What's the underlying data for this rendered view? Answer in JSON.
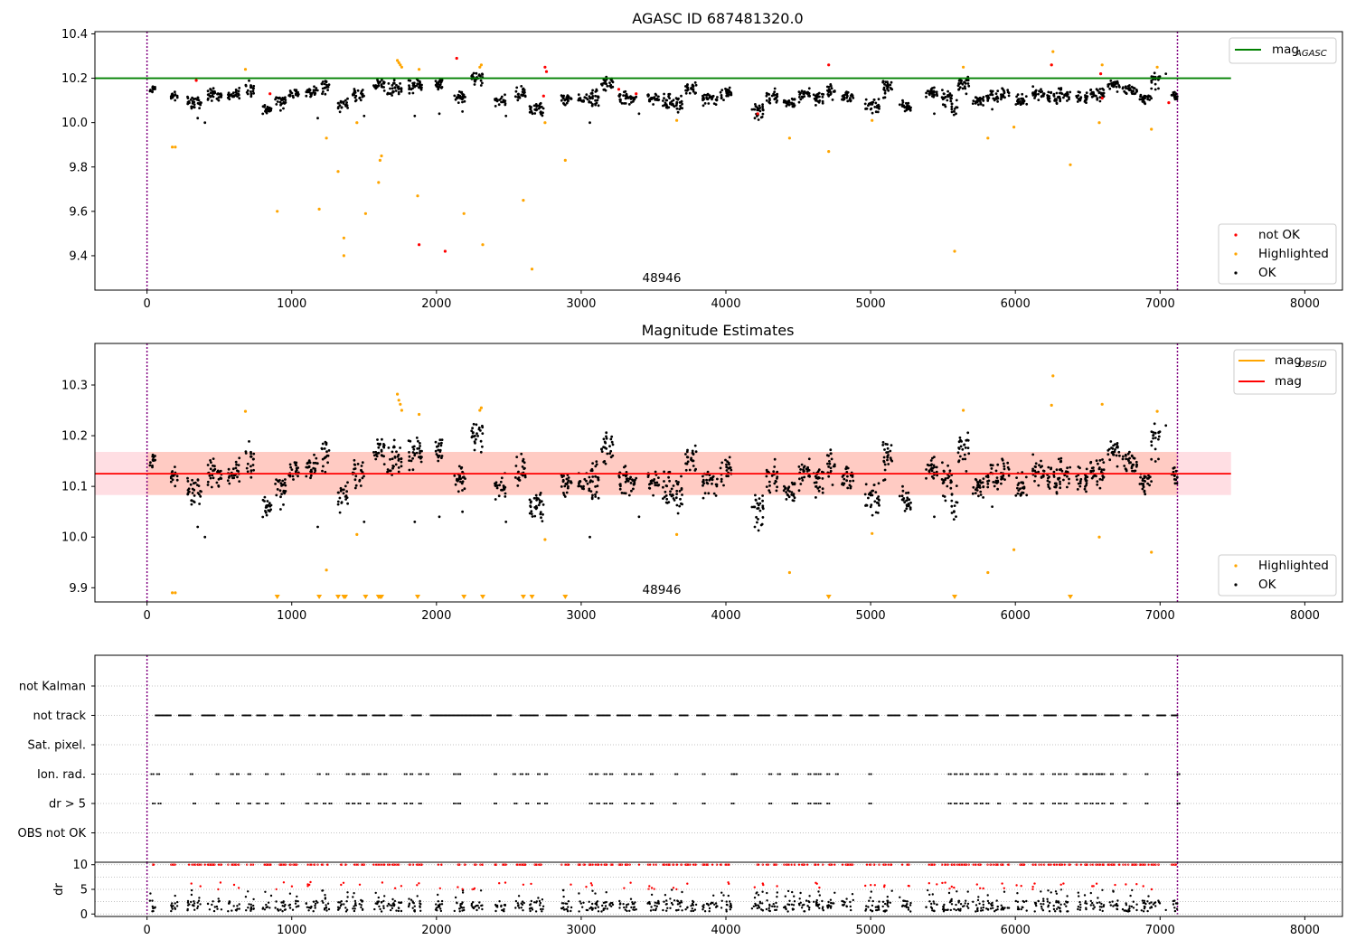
{
  "colors": {
    "ok": "#000000",
    "not_ok": "#ff0000",
    "highlighted": "#ffa500",
    "mag_agasc_line": "#008000",
    "mag_line": "#ff0000",
    "mag_obsid_line": "#ffa500",
    "band": "#ffb6c1",
    "interval_markers": "#800080"
  },
  "chart_data": [
    {
      "type": "scatter",
      "title": "AGASC ID 687481320.0",
      "xlim": [
        -360,
        8260
      ],
      "ylim": [
        9.245,
        10.41
      ],
      "xticks": [
        0,
        1000,
        2000,
        3000,
        4000,
        5000,
        6000,
        7000,
        8000
      ],
      "yticks": [
        9.4,
        9.6,
        9.8,
        10.0,
        10.2,
        10.4
      ],
      "ytick_labels": [
        "9.4",
        "9.6",
        "9.8",
        "10.0",
        "10.2",
        "10.4"
      ],
      "hline": {
        "label": "mag",
        "subscript": "AGASC",
        "value": 10.2,
        "xrange": [
          -360,
          7490
        ]
      },
      "vlines": [
        0,
        7120
      ],
      "annotation": {
        "text": "48946",
        "x": 3560,
        "y": 9.3
      },
      "legends": [
        {
          "placement": "upper right",
          "entries": [
            {
              "label": "mag",
              "subscript": "AGASC",
              "kind": "line",
              "color": "#008000"
            }
          ]
        },
        {
          "placement": "lower right",
          "entries": [
            {
              "label": "not OK",
              "kind": "marker",
              "color": "#ff0000"
            },
            {
              "label": "Highlighted",
              "kind": "marker",
              "color": "#ffa500"
            },
            {
              "label": "OK",
              "kind": "marker",
              "color": "#000000"
            }
          ]
        }
      ],
      "grid": false,
      "series": [
        {
          "name": "Highlighted",
          "color": "#ffa500",
          "points": [
            [
              175,
              9.89
            ],
            [
              195,
              9.89
            ],
            [
              900,
              9.6
            ],
            [
              1190,
              9.61
            ],
            [
              1240,
              9.93
            ],
            [
              1320,
              9.78
            ],
            [
              1360,
              9.48
            ],
            [
              1360,
              9.4
            ],
            [
              1450,
              10.0
            ],
            [
              1510,
              9.59
            ],
            [
              1600,
              9.73
            ],
            [
              1610,
              9.83
            ],
            [
              1620,
              9.85
            ],
            [
              1870,
              9.67
            ],
            [
              2190,
              9.59
            ],
            [
              2320,
              9.45
            ],
            [
              2600,
              9.65
            ],
            [
              2660,
              9.34
            ],
            [
              2750,
              10.0
            ],
            [
              2890,
              9.83
            ],
            [
              3660,
              10.01
            ],
            [
              4440,
              9.93
            ],
            [
              4710,
              9.87
            ],
            [
              5010,
              10.01
            ],
            [
              5580,
              9.42
            ],
            [
              5810,
              9.93
            ],
            [
              5990,
              9.98
            ],
            [
              6380,
              9.81
            ],
            [
              6250,
              10.26
            ],
            [
              6260,
              10.32
            ],
            [
              6580,
              10.0
            ],
            [
              6940,
              9.97
            ],
            [
              680,
              10.24
            ],
            [
              1730,
              10.28
            ],
            [
              1740,
              10.27
            ],
            [
              1750,
              10.26
            ],
            [
              1760,
              10.25
            ],
            [
              1880,
              10.24
            ],
            [
              2300,
              10.25
            ],
            [
              2310,
              10.26
            ],
            [
              5640,
              10.25
            ],
            [
              6600,
              10.26
            ],
            [
              6980,
              10.25
            ]
          ]
        },
        {
          "name": "not OK",
          "color": "#ff0000",
          "points": [
            [
              340,
              10.19
            ],
            [
              850,
              10.13
            ],
            [
              1880,
              9.45
            ],
            [
              2060,
              9.42
            ],
            [
              2140,
              10.29
            ],
            [
              2750,
              10.25
            ],
            [
              2760,
              10.23
            ],
            [
              2740,
              10.12
            ],
            [
              3260,
              10.15
            ],
            [
              3380,
              10.13
            ],
            [
              4710,
              10.26
            ],
            [
              4220,
              10.04
            ],
            [
              6250,
              10.26
            ],
            [
              6590,
              10.22
            ],
            [
              6600,
              10.11
            ],
            [
              7060,
              10.09
            ]
          ]
        }
      ]
    },
    {
      "type": "scatter",
      "title": "Magnitude Estimates",
      "xlim": [
        -360,
        8260
      ],
      "ylim": [
        9.872,
        10.382
      ],
      "xticks": [
        0,
        1000,
        2000,
        3000,
        4000,
        5000,
        6000,
        7000,
        8000
      ],
      "yticks": [
        9.9,
        10.0,
        10.1,
        10.2,
        10.3
      ],
      "ytick_labels": [
        "9.9",
        "10.0",
        "10.1",
        "10.2",
        "10.3"
      ],
      "hline": {
        "label": "mag",
        "value": 10.125,
        "xrange": [
          -360,
          7490
        ]
      },
      "band": {
        "low": 10.083,
        "high": 10.168,
        "xrange": [
          -360,
          7490
        ]
      },
      "vlines": [
        0,
        7120
      ],
      "annotation": {
        "text": "48946",
        "x": 3560,
        "y": 9.89
      },
      "legends": [
        {
          "placement": "upper right",
          "entries": [
            {
              "label": "mag",
              "subscript": "OBSID",
              "kind": "line",
              "color": "#ffa500"
            },
            {
              "label": "mag",
              "kind": "line",
              "color": "#ff0000"
            }
          ]
        },
        {
          "placement": "lower right",
          "entries": [
            {
              "label": "Highlighted",
              "kind": "marker",
              "color": "#ffa500"
            },
            {
              "label": "OK",
              "kind": "marker",
              "color": "#000000"
            }
          ]
        }
      ],
      "grid": false,
      "series": [
        {
          "name": "Highlighted",
          "color": "#ffa500",
          "points": [
            [
              175,
              9.89
            ],
            [
              195,
              9.89
            ],
            [
              1240,
              9.935
            ],
            [
              1450,
              10.005
            ],
            [
              2750,
              9.995
            ],
            [
              3660,
              10.005
            ],
            [
              4440,
              9.93
            ],
            [
              5010,
              10.007
            ],
            [
              5810,
              9.93
            ],
            [
              5990,
              9.975
            ],
            [
              6580,
              10.0
            ],
            [
              6940,
              9.97
            ],
            [
              680,
              10.248
            ],
            [
              1730,
              10.282
            ],
            [
              1740,
              10.27
            ],
            [
              1750,
              10.262
            ],
            [
              1760,
              10.25
            ],
            [
              1880,
              10.242
            ],
            [
              2300,
              10.25
            ],
            [
              2310,
              10.255
            ],
            [
              5640,
              10.25
            ],
            [
              6250,
              10.26
            ],
            [
              6260,
              10.318
            ],
            [
              6600,
              10.262
            ],
            [
              6980,
              10.248
            ]
          ]
        },
        {
          "name": "Highlighted (off scale)",
          "color": "#ffa500",
          "markers": "triangle-down",
          "x": [
            900,
            1190,
            1320,
            1360,
            1370,
            1510,
            1600,
            1610,
            1620,
            1870,
            2190,
            2320,
            2600,
            2660,
            2890,
            4710,
            5580,
            6380
          ]
        }
      ]
    },
    {
      "type": "scatter",
      "categories": [
        "not Kalman",
        "not track",
        "Sat. pixel.",
        "Ion. rad.",
        "dr > 5",
        "OBS not OK"
      ],
      "xlim": [
        -360,
        8260
      ],
      "vlines": [
        0,
        7120
      ],
      "grid": true,
      "series": [
        {
          "name": "not track",
          "ranges": [
            [
              60,
              170
            ],
            [
              220,
              300
            ],
            [
              380,
              470
            ],
            [
              540,
              600
            ],
            [
              660,
              720
            ],
            [
              760,
              820
            ],
            [
              880,
              940
            ],
            [
              990,
              1060
            ],
            [
              1120,
              1160
            ],
            [
              1200,
              1280
            ],
            [
              1320,
              1420
            ],
            [
              1460,
              1520
            ],
            [
              1560,
              1640
            ],
            [
              1680,
              1760
            ],
            [
              1830,
              1900
            ],
            [
              1960,
              2380
            ],
            [
              2420,
              2520
            ],
            [
              2580,
              2700
            ],
            [
              2760,
              2900
            ],
            [
              2960,
              3050
            ],
            [
              3110,
              3200
            ],
            [
              3250,
              3340
            ],
            [
              3400,
              3480
            ],
            [
              3540,
              3620
            ],
            [
              3680,
              3740
            ],
            [
              3800,
              3880
            ],
            [
              3940,
              4000
            ],
            [
              4060,
              4160
            ],
            [
              4220,
              4300
            ],
            [
              4360,
              4420
            ],
            [
              4480,
              4560
            ],
            [
              4620,
              4700
            ],
            [
              4740,
              4800
            ],
            [
              4860,
              4940
            ],
            [
              4990,
              5060
            ],
            [
              5120,
              5200
            ],
            [
              5260,
              5320
            ],
            [
              5380,
              5460
            ],
            [
              5520,
              5600
            ],
            [
              5660,
              5740
            ],
            [
              5800,
              5880
            ],
            [
              5940,
              6020
            ],
            [
              6060,
              6140
            ],
            [
              6200,
              6280
            ],
            [
              6340,
              6420
            ],
            [
              6460,
              6560
            ],
            [
              6620,
              6720
            ],
            [
              6760,
              6800
            ],
            [
              6880,
              6920
            ],
            [
              6980,
              7040
            ],
            [
              7080,
              7120
            ]
          ]
        },
        {
          "name": "Ion. rad.",
          "x": [
            30,
            70,
            300,
            480,
            580,
            620,
            700,
            820,
            930,
            1180,
            1240,
            1380,
            1420,
            1490,
            1520,
            1600,
            1640,
            1780,
            1820,
            1880,
            1930,
            2120,
            2150,
            2400,
            2530,
            2580,
            2620,
            2700,
            2750,
            3060,
            3100,
            3160,
            3200,
            3300,
            3350,
            3400,
            3480,
            3650,
            3840,
            4040,
            4060,
            4300,
            4360,
            4460,
            4480,
            4570,
            4610,
            4640,
            4700,
            4760,
            4990,
            5540,
            5580,
            5620,
            5660,
            5720,
            5760,
            5800,
            5860,
            5940,
            5990,
            6060,
            6100,
            6180,
            6260,
            6300,
            6340,
            6420,
            6470,
            6480,
            6520,
            6560,
            6580,
            6600,
            6660,
            6750,
            6900,
            7120
          ]
        },
        {
          "name": "dr > 5",
          "x": [
            40,
            80,
            320,
            480,
            620,
            700,
            760,
            820,
            930,
            1100,
            1160,
            1220,
            1260,
            1380,
            1420,
            1460,
            1520,
            1600,
            1640,
            1700,
            1780,
            1820,
            1880,
            2120,
            2150,
            2400,
            2540,
            2620,
            2700,
            2750,
            3060,
            3110,
            3160,
            3200,
            3300,
            3350,
            3420,
            3480,
            3640,
            3840,
            4040,
            4300,
            4460,
            4480,
            4570,
            4610,
            4640,
            4700,
            4990,
            5540,
            5580,
            5620,
            5660,
            5720,
            5760,
            5800,
            5880,
            5990,
            6060,
            6100,
            6180,
            6260,
            6300,
            6340,
            6420,
            6480,
            6520,
            6560,
            6600,
            6660,
            6750,
            6900,
            7120
          ]
        }
      ]
    },
    {
      "type": "scatter",
      "ylabel": "dr",
      "xlim": [
        -360,
        8260
      ],
      "ylim": [
        -0.5,
        10.5
      ],
      "xticks": [
        0,
        1000,
        2000,
        3000,
        4000,
        5000,
        6000,
        7000,
        8000
      ],
      "yticks": [
        0,
        5,
        10
      ],
      "ytick_labels": [
        "0",
        "5",
        "10"
      ],
      "vlines": [
        0,
        7120
      ],
      "grid": true
    }
  ]
}
